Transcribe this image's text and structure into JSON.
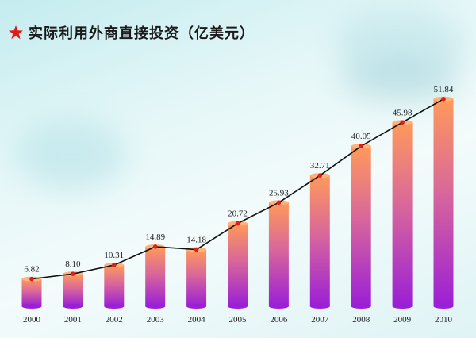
{
  "title": "实际利用外商直接投资（亿美元）",
  "icon": "red-star-icon",
  "colors": {
    "star": "#e0191c",
    "line": "#111111",
    "marker": "#e01c1c",
    "bar_top": "#ff9a5a",
    "bar_bottom": "#9b1fd6"
  },
  "chart_data": {
    "type": "bar",
    "title": "实际利用外商直接投资（亿美元）",
    "xlabel": "",
    "ylabel": "",
    "categories": [
      "2000",
      "2001",
      "2002",
      "2003",
      "2004",
      "2005",
      "2006",
      "2007",
      "2008",
      "2009",
      "2010"
    ],
    "value_labels": [
      "6.82",
      "8.10",
      "10.31",
      "14.89",
      "14.18",
      "20.72",
      "25.93",
      "32.71",
      "40.05",
      "45.98",
      "51.84"
    ],
    "values": [
      6.82,
      8.1,
      10.31,
      14.89,
      14.18,
      20.72,
      25.93,
      32.71,
      40.05,
      45.98,
      51.84
    ],
    "overlay": "line",
    "ylim": [
      0,
      52
    ],
    "grid": false,
    "legend": "none"
  }
}
